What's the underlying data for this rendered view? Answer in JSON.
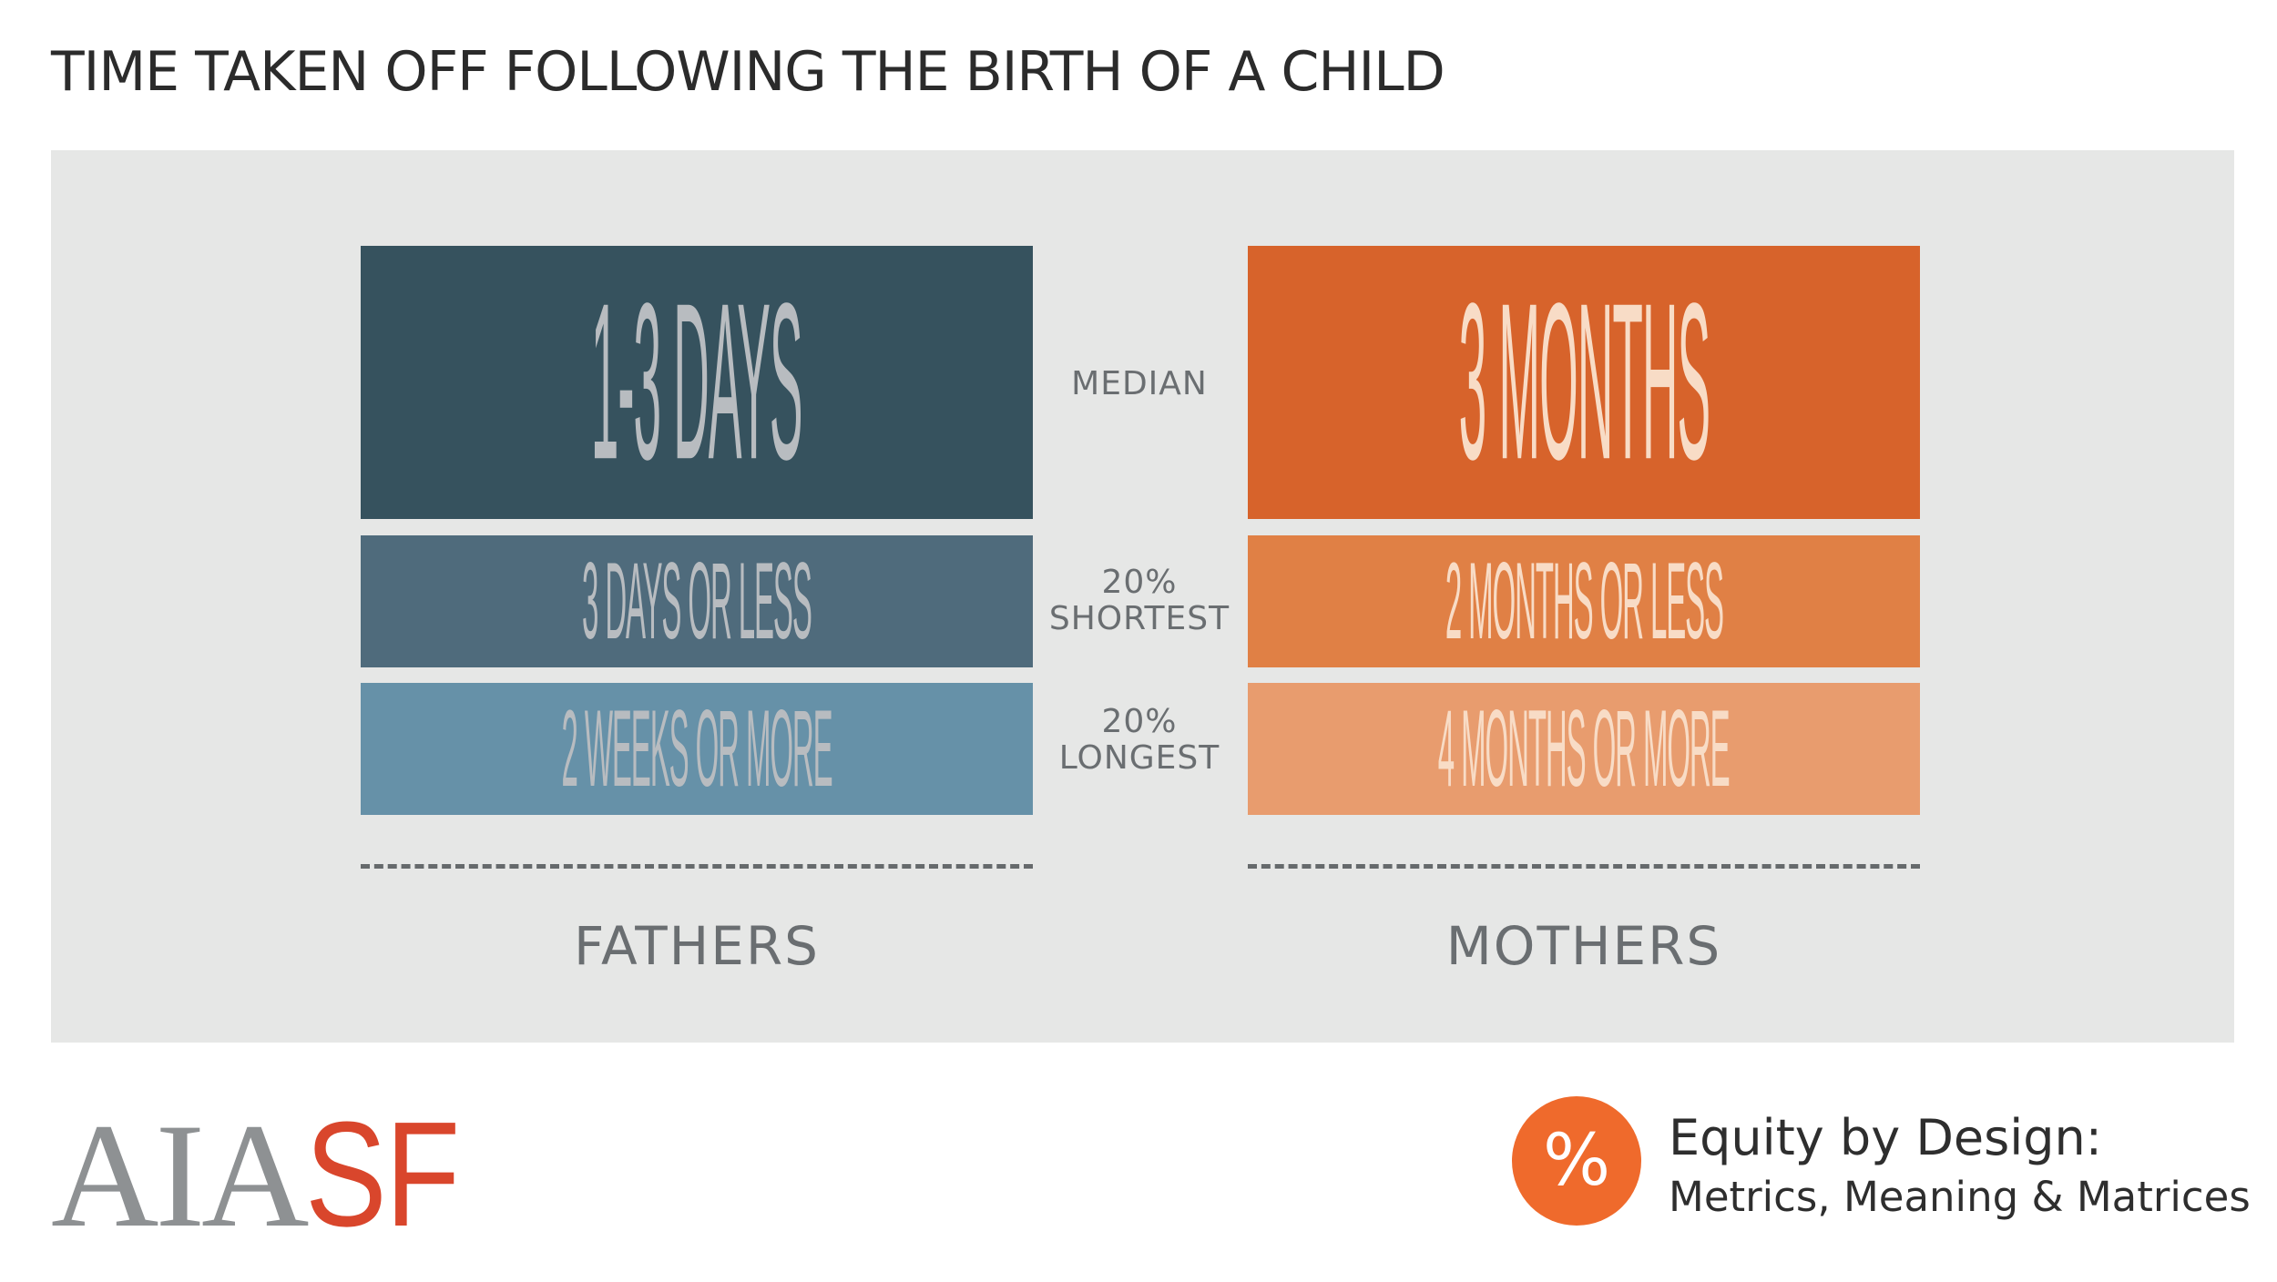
{
  "title": "TIME TAKEN OFF FOLLOWING THE BIRTH OF A CHILD",
  "row_labels": {
    "median": "MEDIAN",
    "shortest_pct": "20%",
    "shortest": "SHORTEST",
    "longest_pct": "20%",
    "longest": "LONGEST"
  },
  "fathers": {
    "label": "FATHERS",
    "median": "1-3 DAYS",
    "shortest": "3 DAYS OR LESS",
    "longest": "2 WEEKS OR MORE",
    "colors": {
      "median": "#36525e",
      "shortest": "#4f6b7c",
      "longest": "#6691a8"
    }
  },
  "mothers": {
    "label": "MOTHERS",
    "median": "3 MONTHS",
    "shortest": "2 MONTHS OR LESS",
    "longest": "4 MONTHS OR MORE",
    "colors": {
      "median": "#d7632b",
      "shortest": "#e08045",
      "longest": "#e89c6e"
    }
  },
  "footer": {
    "logo_aia": "AIA",
    "logo_sf": "SF",
    "badge_icon": "percent-icon",
    "badge_symbol": "%",
    "title": "Equity by Design:",
    "subtitle": "Metrics, Meaning & Matrices"
  }
}
